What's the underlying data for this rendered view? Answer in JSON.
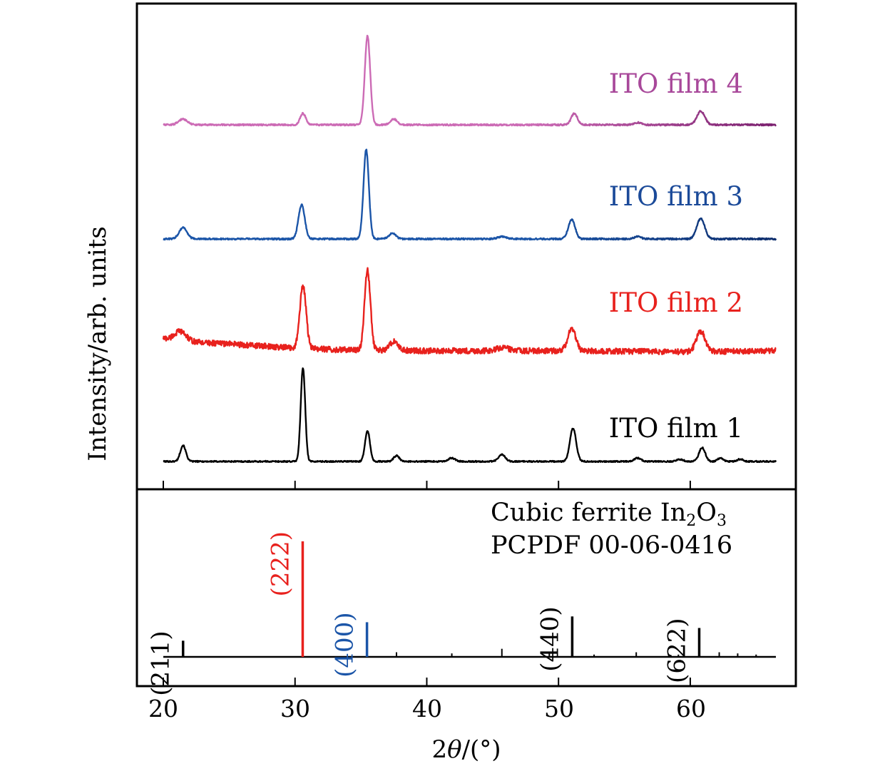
{
  "chart_data": [
    {
      "type": "line",
      "title": "",
      "xlabel": "2θ/(°)",
      "ylabel": "Intensity/arb. units",
      "xlim": [
        18,
        68
      ],
      "ylim": [
        0,
        4.1
      ],
      "grid": false,
      "xticks": [
        20,
        30,
        40,
        50,
        60
      ],
      "series": [
        {
          "name": "ITO film 1",
          "color": "#000000",
          "offset": 0,
          "baseline_noise": 0.006,
          "peaks": [
            [
              21.5,
              0.14,
              0.25
            ],
            [
              30.6,
              0.82,
              0.2
            ],
            [
              35.5,
              0.27,
              0.22
            ],
            [
              37.7,
              0.05,
              0.25
            ],
            [
              41.9,
              0.03,
              0.3
            ],
            [
              45.7,
              0.06,
              0.3
            ],
            [
              51.1,
              0.29,
              0.28
            ],
            [
              56.0,
              0.03,
              0.3
            ],
            [
              59.2,
              0.02,
              0.3
            ],
            [
              60.9,
              0.12,
              0.28
            ],
            [
              62.3,
              0.03,
              0.25
            ],
            [
              63.8,
              0.02,
              0.25
            ]
          ]
        },
        {
          "name": "ITO film 2",
          "color": "#e8211d",
          "offset": 0.95,
          "baseline_noise": 0.025,
          "baseline": [
            [
              20,
              0.13
            ],
            [
              22,
              0.1
            ],
            [
              25,
              0.08
            ],
            [
              29,
              0.05
            ],
            [
              33,
              0.03
            ],
            [
              40,
              0.02
            ],
            [
              50,
              0.02
            ],
            [
              60,
              0.01
            ],
            [
              66.5,
              0.02
            ]
          ],
          "peaks": [
            [
              21.3,
              0.08,
              0.5
            ],
            [
              30.6,
              0.55,
              0.28
            ],
            [
              35.5,
              0.7,
              0.26
            ],
            [
              37.5,
              0.08,
              0.35
            ],
            [
              45.8,
              0.03,
              0.5
            ],
            [
              51.0,
              0.2,
              0.35
            ],
            [
              60.8,
              0.18,
              0.4
            ]
          ]
        },
        {
          "name": "ITO film 3",
          "color": "#1b55a8",
          "end_color": "#0d2d6c",
          "offset": 1.95,
          "baseline_noise": 0.007,
          "peaks": [
            [
              21.5,
              0.1,
              0.35
            ],
            [
              30.5,
              0.3,
              0.28
            ],
            [
              35.4,
              0.78,
              0.24
            ],
            [
              37.4,
              0.05,
              0.3
            ],
            [
              45.7,
              0.02,
              0.4
            ],
            [
              51.0,
              0.17,
              0.3
            ],
            [
              56.0,
              0.02,
              0.3
            ],
            [
              60.8,
              0.18,
              0.35
            ]
          ]
        },
        {
          "name": "ITO film 4",
          "color": "#cc6bb5",
          "end_color": "#7a1f6e",
          "offset": 2.95,
          "baseline_noise": 0.007,
          "peaks": [
            [
              21.5,
              0.05,
              0.4
            ],
            [
              30.6,
              0.1,
              0.25
            ],
            [
              35.5,
              0.78,
              0.24
            ],
            [
              37.5,
              0.05,
              0.3
            ],
            [
              51.2,
              0.1,
              0.28
            ],
            [
              56.0,
              0.02,
              0.3
            ],
            [
              60.8,
              0.12,
              0.35
            ]
          ]
        }
      ]
    },
    {
      "type": "bar",
      "title": "Cubic ferrite In2O3",
      "reference": "PCPDF 00-06-0416",
      "xlim": [
        18,
        68
      ],
      "ylim": [
        0,
        100
      ],
      "bars": [
        {
          "x": 21.5,
          "intensity": 14,
          "hkl": "(211)",
          "color": "#000000",
          "labeled": true
        },
        {
          "x": 30.58,
          "intensity": 100,
          "hkl": "(222)",
          "color": "#e8211d",
          "labeled": true
        },
        {
          "x": 35.46,
          "intensity": 30,
          "hkl": "(400)",
          "color": "#1b55a8",
          "labeled": true
        },
        {
          "x": 37.7,
          "intensity": 4,
          "hkl": "",
          "color": "#000000",
          "labeled": false
        },
        {
          "x": 41.9,
          "intensity": 3,
          "hkl": "",
          "color": "#000000",
          "labeled": false
        },
        {
          "x": 45.7,
          "intensity": 7,
          "hkl": "",
          "color": "#000000",
          "labeled": false
        },
        {
          "x": 49.3,
          "intensity": 3,
          "hkl": "",
          "color": "#000000",
          "labeled": false
        },
        {
          "x": 51.04,
          "intensity": 35,
          "hkl": "(440)",
          "color": "#000000",
          "labeled": true
        },
        {
          "x": 52.7,
          "intensity": 2,
          "hkl": "",
          "color": "#000000",
          "labeled": false
        },
        {
          "x": 55.9,
          "intensity": 4,
          "hkl": "",
          "color": "#000000",
          "labeled": false
        },
        {
          "x": 59.1,
          "intensity": 2,
          "hkl": "",
          "color": "#000000",
          "labeled": false
        },
        {
          "x": 60.68,
          "intensity": 25,
          "hkl": "(622)",
          "color": "#000000",
          "labeled": true
        },
        {
          "x": 62.2,
          "intensity": 4,
          "hkl": "",
          "color": "#000000",
          "labeled": false
        },
        {
          "x": 63.6,
          "intensity": 3,
          "hkl": "",
          "color": "#000000",
          "labeled": false
        },
        {
          "x": 65.0,
          "intensity": 2,
          "hkl": "",
          "color": "#000000",
          "labeled": false
        }
      ]
    }
  ],
  "legend_labels": [
    "ITO film 4",
    "ITO film 3",
    "ITO film 2",
    "ITO film 1"
  ],
  "reference_caption": {
    "prefix": "Cubic ferrite In",
    "sub1": "2",
    "mid": "O",
    "sub2": "3",
    "line2": "PCPDF 00-06-0416"
  },
  "axis": {
    "x_tick_labels": [
      "20",
      "30",
      "40",
      "50",
      "60"
    ],
    "xlabel_prefix": "2",
    "xlabel_theta": "θ",
    "xlabel_suffix": "/(°)",
    "ylabel": "Intensity/arb. units"
  }
}
